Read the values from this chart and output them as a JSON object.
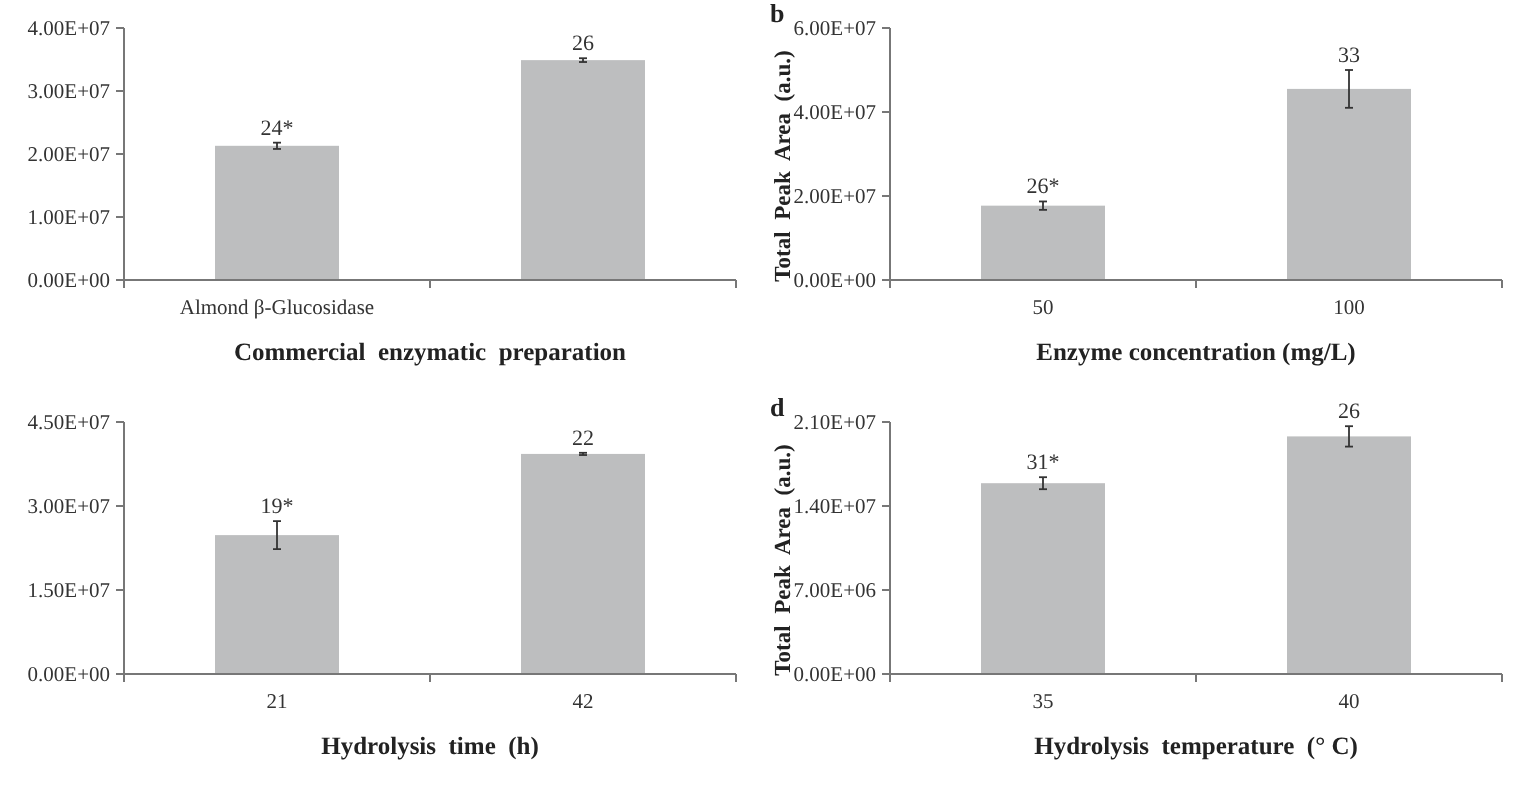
{
  "chart_data": [
    {
      "type": "bar",
      "xlabel": "Commercial  enzymatic  preparation",
      "categories": [
        "Almond β-Glucosidase",
        null
      ],
      "values": [
        21300000,
        34900000
      ],
      "errors": [
        500000,
        300000
      ],
      "annotations": [
        {
          "text": "24*",
          "x": "Almond β-Glucosidase",
          "y": 21800000
        },
        {
          "text": "26",
          "y": 35200000
        }
      ],
      "color": "#bdbebf",
      "ylim": [
        0,
        40000000
      ],
      "yticks": [
        {
          "value": 0,
          "label": "0.00E+00"
        },
        {
          "value": 10000000,
          "label": "1.00E+07"
        },
        {
          "value": 20000000,
          "label": "2.00E+07"
        },
        {
          "value": 30000000,
          "label": "3.00E+07"
        },
        {
          "value": 40000000,
          "label": "4.00E+07"
        }
      ]
    },
    {
      "type": "bar",
      "xlabel": "Enzyme concentration (mg/L)",
      "ylabel": "Total  Peak  Area  (a.u.)",
      "annotations": [
        "b",
        {
          "text": "26*",
          "x": "50",
          "y": 18700000
        },
        {
          "text": "33",
          "x": "100",
          "y": 50000000
        }
      ],
      "categories": [
        "50",
        "100"
      ],
      "values": [
        17700000,
        45500000
      ],
      "errors": [
        1000000,
        4500000
      ],
      "color": "#bdbebf",
      "ylim": [
        0,
        60000000
      ],
      "yticks": [
        {
          "value": 0,
          "label": "0.00E+00"
        },
        {
          "value": 20000000,
          "label": "2.00E+07"
        },
        {
          "value": 40000000,
          "label": "4.00E+07"
        },
        {
          "value": 60000000,
          "label": "6.00E+07"
        }
      ]
    },
    {
      "type": "bar",
      "xlabel": "Hydrolysis  time  (h)",
      "annotations": [
        {
          "text": "19*",
          "x": "21",
          "y": 27300000
        },
        {
          "text": "22",
          "x": "42",
          "y": 39500000
        }
      ],
      "categories": [
        "21",
        "42"
      ],
      "values": [
        24800000,
        39300000
      ],
      "errors": [
        2500000,
        200000
      ],
      "color": "#bdbebf",
      "ylim": [
        0,
        45000000
      ],
      "yticks": [
        {
          "value": 0,
          "label": "0.00E+00"
        },
        {
          "value": 15000000,
          "label": "1.50E+07"
        },
        {
          "value": 30000000,
          "label": "3.00E+07"
        },
        {
          "value": 45000000,
          "label": "4.50E+07"
        }
      ]
    },
    {
      "type": "bar",
      "xlabel": "Hydrolysis  temperature  (° C)",
      "ylabel": "Total  Peak  Area  (a.u.)",
      "annotations": [
        "d",
        {
          "text": "31*",
          "x": "35",
          "y": 16400000
        },
        {
          "text": "26",
          "x": "40",
          "y": 20650000
        }
      ],
      "categories": [
        "35",
        "40"
      ],
      "values": [
        15900000,
        19800000
      ],
      "errors": [
        500000,
        850000
      ],
      "color": "#bdbebf",
      "ylim": [
        0,
        21000000
      ],
      "yticks": [
        {
          "value": 0,
          "label": "0.00E+00"
        },
        {
          "value": 7000000,
          "label": "7.00E+06"
        },
        {
          "value": 14000000,
          "label": "1.40E+07"
        },
        {
          "value": 21000000,
          "label": "2.10E+07"
        }
      ]
    }
  ]
}
